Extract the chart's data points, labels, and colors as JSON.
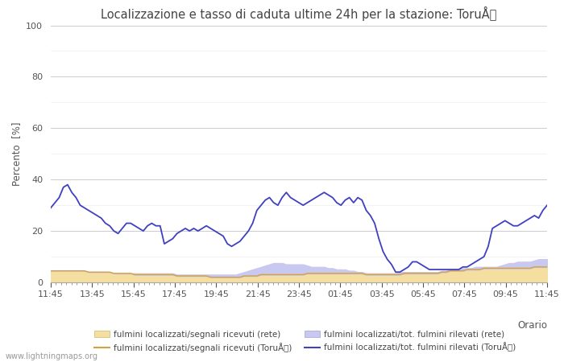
{
  "title": "Localizzazione e tasso di caduta ultime 24h per la stazione: ToruÅ",
  "ylabel": "Percento  [%]",
  "xlabel_right": "Orario",
  "ylim": [
    0,
    100
  ],
  "yticks": [
    0,
    20,
    40,
    60,
    80,
    100
  ],
  "ytick_minor": [
    10,
    30,
    50,
    70,
    90
  ],
  "x_labels": [
    "11:45",
    "13:45",
    "15:45",
    "17:45",
    "19:45",
    "21:45",
    "23:45",
    "01:45",
    "03:45",
    "05:45",
    "07:45",
    "09:45",
    "11:45"
  ],
  "watermark": "www.lightningmaps.org",
  "legend_labels": [
    "fulmini localizzati/segnali ricevuti (rete)",
    "fulmini localizzati/segnali ricevuti (ToruÅ)",
    "fulmini localizzati/tot. fulmini rilevati (rete)",
    "fulmini localizzati/tot. fulmini rilevati (ToruÅ)"
  ],
  "color_fill_segnali_rete": "#f5dfa0",
  "color_line_segnali_toru": "#d4a040",
  "color_fill_fulmini_rete": "#c8c8f0",
  "color_line_fulmini_toru": "#4040c0",
  "blue_line": [
    29,
    31,
    33,
    37,
    38,
    35,
    33,
    30,
    29,
    28,
    27,
    26,
    25,
    23,
    22,
    20,
    19,
    21,
    23,
    23,
    22,
    21,
    20,
    22,
    23,
    22,
    22,
    15,
    16,
    17,
    19,
    20,
    21,
    20,
    21,
    20,
    21,
    22,
    21,
    20,
    19,
    18,
    15,
    14,
    15,
    16,
    18,
    20,
    23,
    28,
    30,
    32,
    33,
    31,
    30,
    33,
    35,
    33,
    32,
    31,
    30,
    31,
    32,
    33,
    34,
    35,
    34,
    33,
    31,
    30,
    32,
    33,
    31,
    33,
    32,
    28,
    26,
    23,
    17,
    12,
    9,
    7,
    4,
    4,
    5,
    6,
    8,
    8,
    7,
    6,
    5,
    5,
    5,
    5,
    5,
    5,
    5,
    5,
    6,
    6,
    7,
    8,
    9,
    10,
    14,
    21,
    22,
    23,
    24,
    23,
    22,
    22,
    23,
    24,
    25,
    26,
    25,
    28,
    30
  ],
  "fill_fulmini_rete": [
    4.5,
    4.5,
    4.5,
    4.5,
    4.5,
    4.5,
    4.5,
    4.5,
    4.5,
    4.0,
    4.0,
    4.0,
    4.0,
    4.0,
    4.0,
    3.5,
    3.5,
    3.5,
    3.5,
    3.5,
    3.5,
    3.5,
    3.5,
    3.5,
    3.5,
    3.5,
    3.5,
    3.5,
    3.5,
    3.5,
    3.0,
    3.0,
    3.0,
    3.0,
    3.0,
    3.0,
    3.0,
    3.0,
    3.0,
    3.0,
    3.0,
    3.0,
    3.0,
    3.0,
    3.0,
    3.5,
    4.0,
    4.5,
    5.0,
    5.5,
    6.0,
    6.5,
    7.0,
    7.5,
    7.5,
    7.5,
    7.0,
    7.0,
    7.0,
    7.0,
    7.0,
    6.5,
    6.0,
    6.0,
    6.0,
    6.0,
    5.5,
    5.5,
    5.0,
    5.0,
    5.0,
    4.5,
    4.5,
    4.0,
    4.0,
    3.5,
    3.5,
    3.5,
    3.5,
    3.5,
    3.5,
    3.5,
    3.5,
    4.0,
    4.0,
    4.0,
    4.0,
    4.0,
    4.0,
    4.0,
    4.0,
    4.0,
    4.0,
    4.5,
    4.5,
    5.0,
    5.0,
    5.0,
    5.5,
    5.5,
    5.5,
    6.0,
    6.0,
    6.0,
    6.0,
    6.0,
    6.0,
    6.5,
    7.0,
    7.5,
    7.5,
    8.0,
    8.0,
    8.0,
    8.0,
    8.5,
    9.0,
    9.0,
    9.0
  ],
  "fill_segnali_rete": [
    4.0,
    4.0,
    4.0,
    4.0,
    4.0,
    4.0,
    4.0,
    4.0,
    4.0,
    3.5,
    3.5,
    3.5,
    3.5,
    3.5,
    3.5,
    3.0,
    3.0,
    3.0,
    3.0,
    3.0,
    2.5,
    2.5,
    2.5,
    2.5,
    2.5,
    2.5,
    2.5,
    2.5,
    2.5,
    2.5,
    2.0,
    2.0,
    2.0,
    2.0,
    2.0,
    2.0,
    2.0,
    2.0,
    1.5,
    1.5,
    1.5,
    1.5,
    1.5,
    1.5,
    1.5,
    1.5,
    2.0,
    2.0,
    2.0,
    2.0,
    2.5,
    2.5,
    2.5,
    2.5,
    2.5,
    2.5,
    2.5,
    2.5,
    2.5,
    2.5,
    2.5,
    3.0,
    3.0,
    3.0,
    3.0,
    3.0,
    3.0,
    3.0,
    3.0,
    3.0,
    3.0,
    3.0,
    3.0,
    3.0,
    3.0,
    2.5,
    2.5,
    2.5,
    2.5,
    2.5,
    2.5,
    2.5,
    2.5,
    2.5,
    3.0,
    3.0,
    3.0,
    3.0,
    3.0,
    3.0,
    3.0,
    3.0,
    3.0,
    3.5,
    3.5,
    4.0,
    4.0,
    4.0,
    4.0,
    4.5,
    4.5,
    4.5,
    4.5,
    5.0,
    5.0,
    5.0,
    5.0,
    5.0,
    5.0,
    5.0,
    5.0,
    5.0,
    5.0,
    5.0,
    5.0,
    5.5,
    5.5,
    5.5,
    5.5
  ],
  "orange_line": [
    4.5,
    4.5,
    4.5,
    4.5,
    4.5,
    4.5,
    4.5,
    4.5,
    4.5,
    4.0,
    4.0,
    4.0,
    4.0,
    4.0,
    4.0,
    3.5,
    3.5,
    3.5,
    3.5,
    3.5,
    3.0,
    3.0,
    3.0,
    3.0,
    3.0,
    3.0,
    3.0,
    3.0,
    3.0,
    3.0,
    2.5,
    2.5,
    2.5,
    2.5,
    2.5,
    2.5,
    2.5,
    2.5,
    2.0,
    2.0,
    2.0,
    2.0,
    2.0,
    2.0,
    2.0,
    2.0,
    2.5,
    2.5,
    2.5,
    2.5,
    3.0,
    3.0,
    3.0,
    3.0,
    3.0,
    3.0,
    3.0,
    3.0,
    3.0,
    3.0,
    3.0,
    3.5,
    3.5,
    3.5,
    3.5,
    3.5,
    3.5,
    3.5,
    3.5,
    3.5,
    3.5,
    3.5,
    3.5,
    3.5,
    3.5,
    3.0,
    3.0,
    3.0,
    3.0,
    3.0,
    3.0,
    3.0,
    3.0,
    3.0,
    3.5,
    3.5,
    3.5,
    3.5,
    3.5,
    3.5,
    3.5,
    3.5,
    3.5,
    4.0,
    4.0,
    4.5,
    4.5,
    4.5,
    4.5,
    5.0,
    5.0,
    5.0,
    5.0,
    5.5,
    5.5,
    5.5,
    5.5,
    5.5,
    5.5,
    5.5,
    5.5,
    5.5,
    5.5,
    5.5,
    5.5,
    6.0,
    6.0,
    6.0,
    6.0
  ]
}
